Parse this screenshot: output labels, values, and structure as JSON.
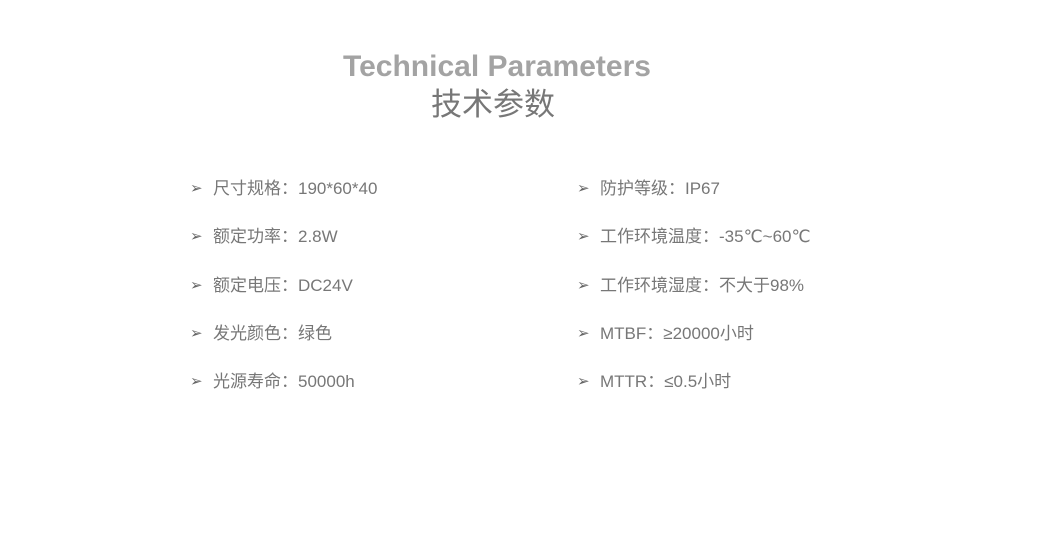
{
  "header": {
    "title_en": "Technical Parameters",
    "title_zh": "技术参数"
  },
  "bullet_icon": "arrow-bullet",
  "left_column": [
    "尺寸规格：190*60*40",
    "额定功率：2.8W",
    "额定电压：DC24V",
    "发光颜色：绿色",
    "光源寿命：50000h"
  ],
  "right_column": [
    "防护等级：IP67",
    "工作环境温度：-35℃~60℃",
    "工作环境湿度：不大于98%",
    "MTBF：≥20000小时",
    "MTTR：≤0.5小时"
  ]
}
